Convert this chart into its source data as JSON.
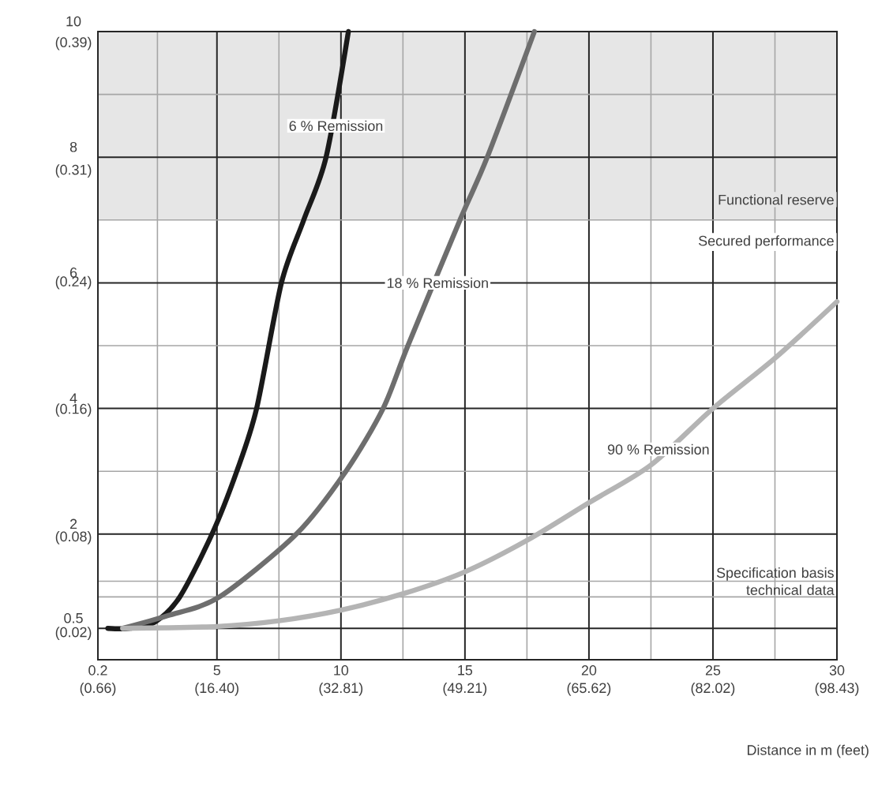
{
  "chart_data": {
    "type": "line",
    "xlabel": "Distance in m (feet)",
    "xlim": [
      0.2,
      30
    ],
    "ylim": [
      0,
      10
    ],
    "xticks": [
      0.2,
      5,
      10,
      15,
      20,
      25,
      30
    ],
    "yticks": [
      0.5,
      2,
      4,
      6,
      8,
      10
    ],
    "x2lim": [
      0.66,
      98.43
    ],
    "x2ticks": [
      {
        "value": 0.66,
        "label": "(0.66)"
      },
      {
        "value": 16.4,
        "label": "(16.40)"
      },
      {
        "value": 32.81,
        "label": "(32.81)"
      },
      {
        "value": 49.21,
        "label": "(49.21)"
      },
      {
        "value": 65.62,
        "label": "(65.62)"
      },
      {
        "value": 82.02,
        "label": "(82.02)"
      },
      {
        "value": 98.43,
        "label": "(98.43)"
      }
    ],
    "y2lim": [
      0,
      0.394
    ],
    "y2ticks": [
      {
        "value": 0.02,
        "label": "(0.02)"
      },
      {
        "value": 0.08,
        "label": "(0.08)"
      },
      {
        "value": 0.16,
        "label": "(0.16)"
      },
      {
        "value": 0.24,
        "label": "(0.24)"
      },
      {
        "value": 0.31,
        "label": "(0.31)"
      },
      {
        "value": 0.39,
        "label": "(0.39)"
      }
    ],
    "grid": true,
    "line_style": "solid",
    "marker": "none",
    "bands": [
      {
        "axis": "y",
        "from": 7,
        "to": 10,
        "label": "Functional reserve",
        "color": "#e6e6e6"
      }
    ],
    "series": [
      {
        "color": "#1a1a1a",
        "x": [
          0.6,
          1.5,
          2.5,
          3.5,
          4.8,
          5.8,
          6.6,
          7.6,
          8.5,
          9.4,
          10.3
        ],
        "values": [
          0.5,
          0.5,
          0.6,
          1.0,
          2,
          3,
          4,
          6,
          7,
          8,
          10
        ]
      },
      {
        "color": "#6e6e6e",
        "x": [
          1.2,
          3,
          5.1,
          8.2,
          10.2,
          11.7,
          12.7,
          14.8,
          15.9,
          17.8
        ],
        "values": [
          0.5,
          0.7,
          1.0,
          2,
          3,
          4,
          5,
          7,
          8,
          10
        ]
      },
      {
        "color": "#b4b4b4",
        "x": [
          1.2,
          5,
          7.5,
          10,
          12.5,
          15,
          17.5,
          20,
          22.5,
          25,
          27.5,
          30
        ],
        "values": [
          0.5,
          0.53,
          0.62,
          0.79,
          1.05,
          1.4,
          1.9,
          2.5,
          3.1,
          4.0,
          4.8,
          5.7
        ]
      }
    ],
    "annotations": [
      {
        "text": "6 % Remission",
        "x": 9.8,
        "y": 8.5
      },
      {
        "text": "18 % Remission",
        "x": 13.9,
        "y": 6.0
      },
      {
        "text": "90 % Remission",
        "x": 22.8,
        "y": 3.35
      },
      "Secured performance",
      "Specification basis technical data"
    ]
  }
}
